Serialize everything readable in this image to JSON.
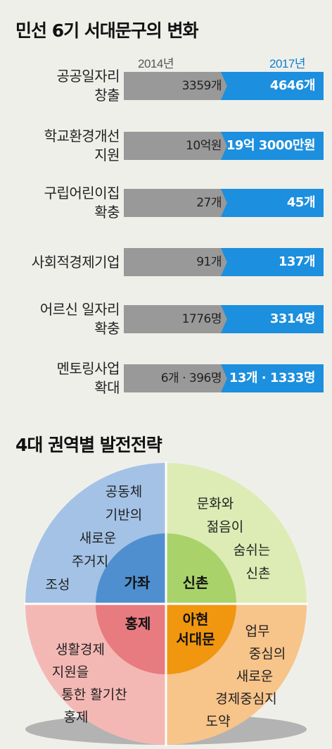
{
  "title": "민선 6기 서대문구의 변화",
  "subtitle": "4대 권역별 발전전략",
  "chart_data": [
    {
      "type": "bar",
      "series": [
        {
          "name": "2014년",
          "color": "#999999"
        },
        {
          "name": "2017년",
          "color": "#1c8fde"
        }
      ],
      "rows": [
        {
          "label_lines": [
            "공공일자리",
            "창출"
          ],
          "v2014": "3359개",
          "v2017": "4646개"
        },
        {
          "label_lines": [
            "학교환경개선",
            "지원"
          ],
          "v2014": "10억원",
          "v2017": "19억 3000만원"
        },
        {
          "label_lines": [
            "구립어린이집",
            "확충"
          ],
          "v2014": "27개",
          "v2017": "45개"
        },
        {
          "label_lines": [
            "사회적경제기업"
          ],
          "v2014": "91개",
          "v2017": "137개"
        },
        {
          "label_lines": [
            "어르신 일자리",
            "확충"
          ],
          "v2014": "1776명",
          "v2017": "3314명"
        },
        {
          "label_lines": [
            "멘토링사업",
            "확대"
          ],
          "v2014": "6개 · 396명",
          "v2017": "13개 · 1333명"
        }
      ]
    },
    {
      "type": "diagram",
      "regions": [
        {
          "name": "가좌",
          "strategy_lines": [
            "공동체",
            "기반의",
            "새로운",
            "주거지",
            "조성"
          ],
          "outer_color": "#a3c2e6",
          "inner_color": "#4f8fd0"
        },
        {
          "name": "신촌",
          "strategy_lines": [
            "문화와",
            "젊음이",
            "숨쉬는",
            "신촌"
          ],
          "outer_color": "#dcecb4",
          "inner_color": "#a9d26a"
        },
        {
          "name": "홍제",
          "strategy_lines": [
            "생활경제",
            "지원을",
            "통한 활기찬",
            "홍제"
          ],
          "outer_color": "#f4b8b4",
          "inner_color": "#e77b80"
        },
        {
          "name_lines": [
            "아현",
            "서대문"
          ],
          "strategy_lines": [
            "업무",
            "중심의",
            "새로운",
            "경제중심지",
            "도약"
          ],
          "outer_color": "#f7c48a",
          "inner_color": "#f0960f"
        }
      ]
    }
  ]
}
